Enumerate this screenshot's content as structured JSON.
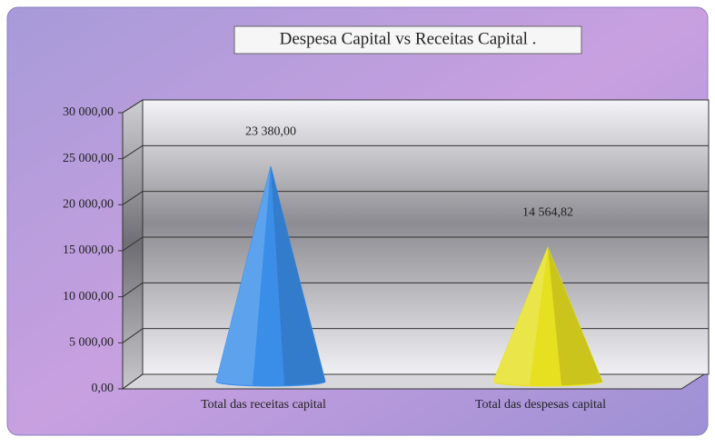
{
  "chart_data": {
    "type": "cone",
    "title": "Despesa Capital vs Receitas Capital  .",
    "categories": [
      "Total das receitas capital",
      "Total das despesas capital"
    ],
    "values": [
      23380,
      14564.82
    ],
    "value_labels": [
      "23 380,00",
      "14 564,82"
    ],
    "colors": [
      "#3a8ee8",
      "#e6e020"
    ],
    "ylim": [
      0,
      30000
    ],
    "yticks": [
      {
        "value": 0,
        "label": "0,00"
      },
      {
        "value": 5000,
        "label": "5 000,00"
      },
      {
        "value": 10000,
        "label": "10 000,00"
      },
      {
        "value": 15000,
        "label": "15 000,00"
      },
      {
        "value": 20000,
        "label": "20 000,00"
      },
      {
        "value": 25000,
        "label": "25 000,00"
      },
      {
        "value": 30000,
        "label": "30 000,00"
      }
    ],
    "grid": true
  }
}
